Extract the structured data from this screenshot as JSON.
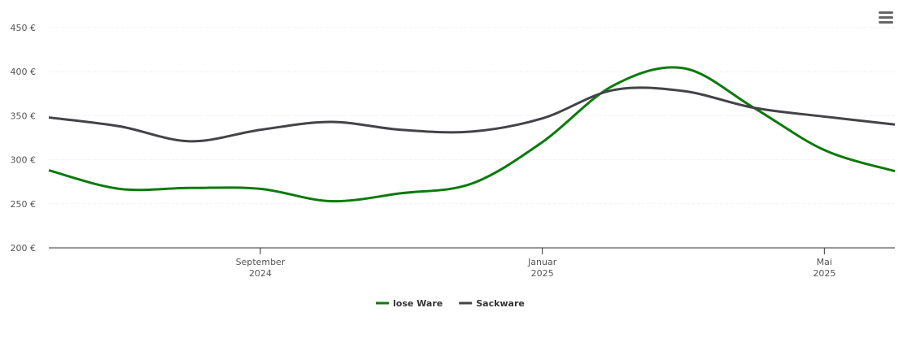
{
  "chart_data": {
    "type": "line",
    "x": [
      "2024-06",
      "2024-07",
      "2024-08",
      "2024-09",
      "2024-10",
      "2024-11",
      "2024-12",
      "2025-01",
      "2025-02",
      "2025-03",
      "2025-04",
      "2025-05",
      "2025-06"
    ],
    "xlim": [
      "2024-06",
      "2025-06"
    ],
    "xticks": [
      {
        "value": "2024-09",
        "label": "September 2024"
      },
      {
        "value": "2025-01",
        "label": "Januar 2025"
      },
      {
        "value": "2025-05",
        "label": "Mai 2025"
      }
    ],
    "ylim": [
      200,
      450
    ],
    "yticks": [
      {
        "value": 200,
        "label": "200 €"
      },
      {
        "value": 250,
        "label": "250 €"
      },
      {
        "value": 300,
        "label": "300 €"
      },
      {
        "value": 350,
        "label": "350 €"
      },
      {
        "value": 400,
        "label": "400 €"
      },
      {
        "value": 450,
        "label": "450 €"
      }
    ],
    "grid": true,
    "legend": "bottom",
    "series": [
      {
        "name": "lose Ware",
        "color": "#0b7a0b",
        "values": [
          288,
          267,
          268,
          267,
          253,
          262,
          273,
          320,
          384,
          404,
          359,
          311,
          287
        ]
      },
      {
        "name": "Sackware",
        "color": "#434348",
        "values": [
          348,
          338,
          321,
          334,
          343,
          334,
          332,
          347,
          379,
          378,
          359,
          349,
          340
        ]
      }
    ]
  }
}
